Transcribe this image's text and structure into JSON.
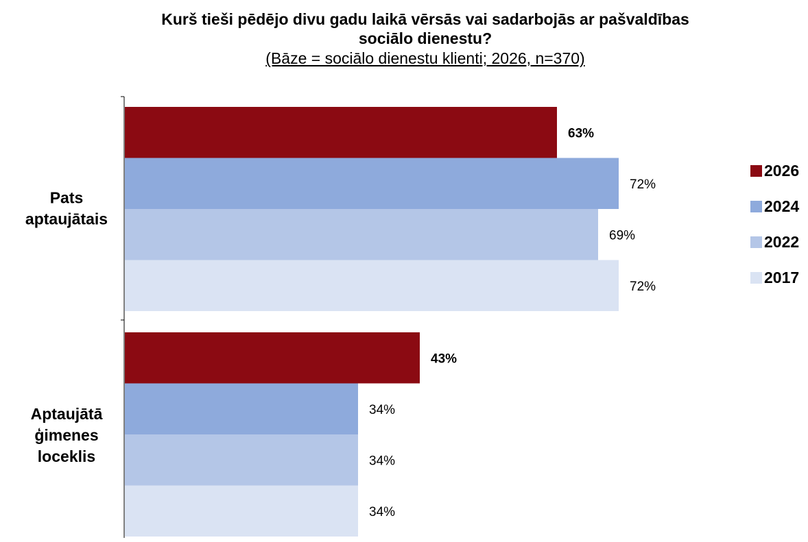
{
  "chart_data": {
    "type": "bar",
    "orientation": "horizontal",
    "title": "Kurš tieši pēdējo divu gadu laikā vērsās vai sadarbojās ar pašvaldības sociālo dienestu?",
    "subtitle": "(Bāze = sociālo dienestu klienti; 2026, n=370)",
    "categories": [
      "Pats aptaujātais",
      "Aptaujātā ģimenes loceklis"
    ],
    "category_lines": [
      [
        "Pats",
        "aptaujātais"
      ],
      [
        "Aptaujātā",
        "ģimenes",
        "loceklis"
      ]
    ],
    "series": [
      {
        "name": "2026",
        "values": [
          63,
          43
        ],
        "labels": [
          "63%",
          "43%"
        ],
        "color": "#8b0a12",
        "bold_labels": true
      },
      {
        "name": "2024",
        "values": [
          72,
          34
        ],
        "labels": [
          "72%",
          "34%"
        ],
        "color": "#8eaadc",
        "bold_labels": false
      },
      {
        "name": "2022",
        "values": [
          69,
          34
        ],
        "labels": [
          "69%",
          "34%"
        ],
        "color": "#b4c6e7",
        "bold_labels": false
      },
      {
        "name": "2017",
        "values": [
          72,
          34
        ],
        "labels": [
          "72%",
          "34%"
        ],
        "color": "#dae3f3",
        "bold_labels": false
      }
    ],
    "xlim": [
      0,
      100
    ],
    "legend_position": "right",
    "grid": false
  }
}
